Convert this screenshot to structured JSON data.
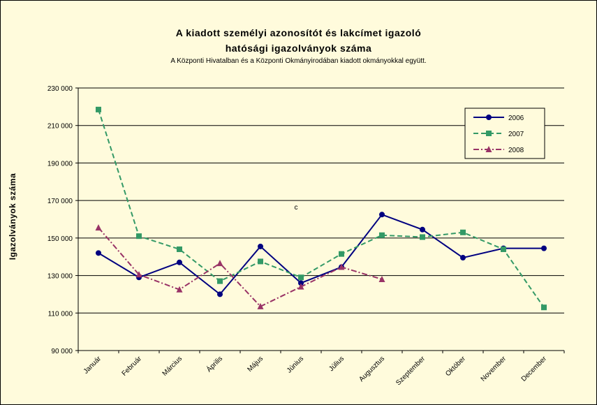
{
  "chart_data": {
    "type": "line",
    "title_line1": "A kiadott személyi azonosítót és lakcímet igazoló",
    "title_line2": "hatósági igazolványok száma",
    "subtitle": "A Központi Hivatalban és a Központi Okmányirodában kiadott okmányokkal együtt.",
    "ylabel": "Igazolványok száma",
    "ylim": [
      90000,
      230000
    ],
    "yticks": [
      90000,
      110000,
      130000,
      150000,
      170000,
      190000,
      210000,
      230000
    ],
    "ytick_labels": [
      "90 000",
      "110 000",
      "130 000",
      "150 000",
      "170 000",
      "190 000",
      "210 000",
      "230 000"
    ],
    "categories": [
      "Január",
      "Február",
      "Március",
      "Április",
      "Május",
      "Június",
      "Július",
      "Augusztus",
      "Szeptember",
      "Október",
      "November",
      "December"
    ],
    "annotation": "c",
    "legend_position": "top-right",
    "grid": "horizontal",
    "series": [
      {
        "name": "2006",
        "color": "#000080",
        "dash": "solid",
        "marker": "circle",
        "values": [
          142000,
          129000,
          137000,
          120000,
          145500,
          126000,
          134500,
          162500,
          154500,
          139500,
          144500,
          144500
        ]
      },
      {
        "name": "2007",
        "color": "#339966",
        "dash": "dashed",
        "marker": "square",
        "values": [
          218500,
          151000,
          144000,
          127000,
          137500,
          129000,
          141500,
          151500,
          150500,
          153000,
          144000,
          113000
        ]
      },
      {
        "name": "2008",
        "color": "#993366",
        "dash": "dashdot",
        "marker": "triangle",
        "values": [
          155500,
          130500,
          122500,
          136500,
          113500,
          124000,
          134500,
          128000,
          null,
          null,
          null,
          null
        ]
      }
    ]
  }
}
